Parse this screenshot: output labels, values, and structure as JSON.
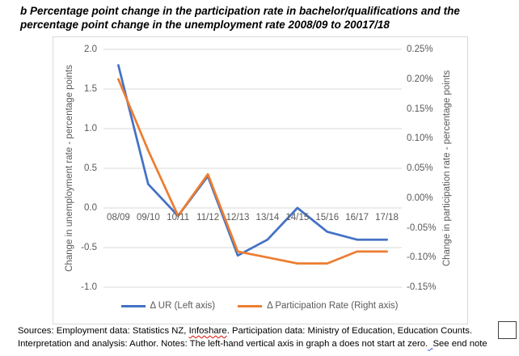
{
  "title": "b Percentage point change in the participation rate in bachelor/qualifications and the percentage point change in the unemployment rate 2008/09 to 20017/18",
  "chart_data": {
    "type": "line",
    "categories": [
      "08/09",
      "09/10",
      "10/11",
      "11/12",
      "12/13",
      "13/14",
      "14/15",
      "15/16",
      "16/17",
      "17/18"
    ],
    "series": [
      {
        "name": "Δ UR (Left axis)",
        "axis": "left",
        "color": "#4472C4",
        "values": [
          1.8,
          0.3,
          -0.1,
          0.4,
          -0.6,
          -0.4,
          0.0,
          -0.3,
          -0.4,
          -0.4
        ]
      },
      {
        "name": "Δ Participation Rate (Right axis)",
        "axis": "right",
        "color": "#ED7D31",
        "values": [
          0.2,
          0.08,
          -0.03,
          0.04,
          -0.09,
          -0.1,
          -0.11,
          -0.11,
          -0.09,
          -0.09
        ]
      }
    ],
    "left_axis": {
      "title": "Change in unemployment rate - percentage points",
      "max": 2.0,
      "min": -1.0,
      "step": 0.5,
      "tick_labels": [
        "2.0",
        "1.5",
        "1.0",
        "0.5",
        "0.0",
        "-0.5",
        "-1.0"
      ]
    },
    "right_axis": {
      "title": "Change in participation rate - percentage points",
      "max": 0.25,
      "min": -0.15,
      "step": 0.05,
      "tick_labels": [
        "0.25%",
        "0.20%",
        "0.15%",
        "0.10%",
        "0.05%",
        "0.00%",
        "-0.05%",
        "-0.10%",
        "-0.15%"
      ]
    },
    "grid": true,
    "legend_position": "bottom",
    "colors": {
      "grid": "#d9d9d9",
      "axis_text": "#595959"
    }
  },
  "footer": {
    "part1": "Sources: Employment data: Statistics NZ, ",
    "misspelled_word": "Infoshare",
    "part2": ". Participation data: Ministry of Education, Education Counts. Interpretation and analysis: Author. Notes: The left-hand vertical axis in graph a does not start at zero.",
    "grammar_mark": "  ",
    "part3": "See end note"
  }
}
